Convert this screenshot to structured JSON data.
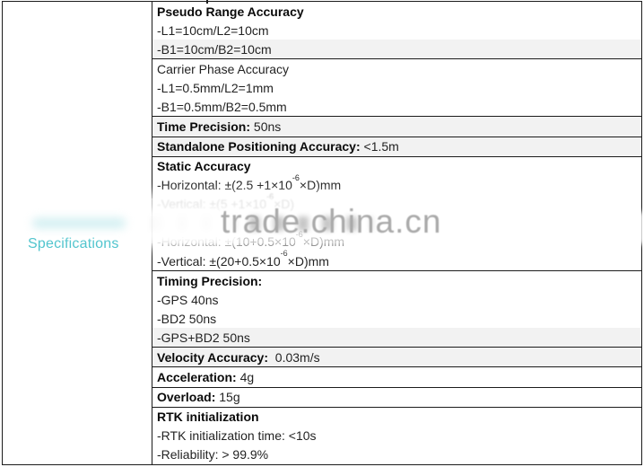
{
  "left_column": {
    "label": "Specifications",
    "label_color": "#4fc4cd"
  },
  "watermark": {
    "text": "trade.china.cn",
    "color": "#a9a9a9"
  },
  "table": {
    "groups": [
      {
        "rows": [
          {
            "parts": [
              {
                "text": "Pseudo Range Accuracy",
                "bold": true
              }
            ]
          },
          {
            "parts": [
              {
                "text": "-L1=10cm/L2=10cm"
              }
            ]
          },
          {
            "parts": [
              {
                "text": "-B1=10cm/B2=10cm"
              }
            ],
            "tint": true
          }
        ]
      },
      {
        "rows": [
          {
            "parts": [
              {
                "text": "Carrier Phase Accuracy"
              }
            ]
          },
          {
            "parts": [
              {
                "text": "-L1=0.5mm/L2=1mm"
              }
            ]
          },
          {
            "parts": [
              {
                "text": "-B1=0.5mm/B2=0.5mm"
              }
            ]
          }
        ]
      },
      {
        "rows": [
          {
            "parts": [
              {
                "text": "Time Precision:",
                "bold": true
              },
              {
                "text": " 50ns"
              }
            ],
            "tint": true
          }
        ]
      },
      {
        "rows": [
          {
            "parts": [
              {
                "text": "Standalone Positioning Accuracy:",
                "bold": true
              },
              {
                "text": " <1.5m"
              }
            ],
            "tint": true
          }
        ]
      },
      {
        "rows": [
          {
            "parts": [
              {
                "text": "Static Accuracy",
                "bold": true
              }
            ]
          },
          {
            "parts": [
              {
                "text": "-Horizontal: ±(2.5 +1×10^-6×D)mm"
              }
            ]
          },
          {
            "parts": [
              {
                "text": "-Vertical: ±(5 +1×10^-6×D)"
              }
            ],
            "faded": true
          },
          {
            "parts": [],
            "obscured": true
          },
          {
            "parts": [
              {
                "text": "-Horizontal: ±(10+0.5×10^-6×D)mm"
              }
            ]
          },
          {
            "parts": [
              {
                "text": "-Vertical: ±(20+0.5×10^-6×D)mm"
              }
            ]
          }
        ]
      },
      {
        "rows": [
          {
            "parts": [
              {
                "text": "Timing Precision:",
                "bold": true
              }
            ]
          },
          {
            "parts": [
              {
                "text": "-GPS 40ns"
              }
            ]
          },
          {
            "parts": [
              {
                "text": "-BD2 50ns"
              }
            ]
          },
          {
            "parts": [
              {
                "text": "-GPS+BD2 50ns"
              }
            ],
            "tint": true
          }
        ]
      },
      {
        "rows": [
          {
            "parts": [
              {
                "text": "Velocity Accuracy:",
                "bold": true
              },
              {
                "text": "  0.03m/s"
              }
            ],
            "tint": true
          }
        ]
      },
      {
        "rows": [
          {
            "parts": [
              {
                "text": "Acceleration:",
                "bold": true
              },
              {
                "text": " 4g"
              }
            ]
          }
        ]
      },
      {
        "rows": [
          {
            "parts": [
              {
                "text": "Overload:",
                "bold": true
              },
              {
                "text": " 15g"
              }
            ]
          }
        ]
      },
      {
        "rows": [
          {
            "parts": [
              {
                "text": "RTK initialization",
                "bold": true
              }
            ]
          },
          {
            "parts": [
              {
                "text": "-RTK initialization time: <10s"
              }
            ]
          },
          {
            "parts": [
              {
                "text": "-Reliability: > 99.9%"
              }
            ]
          }
        ]
      }
    ]
  }
}
